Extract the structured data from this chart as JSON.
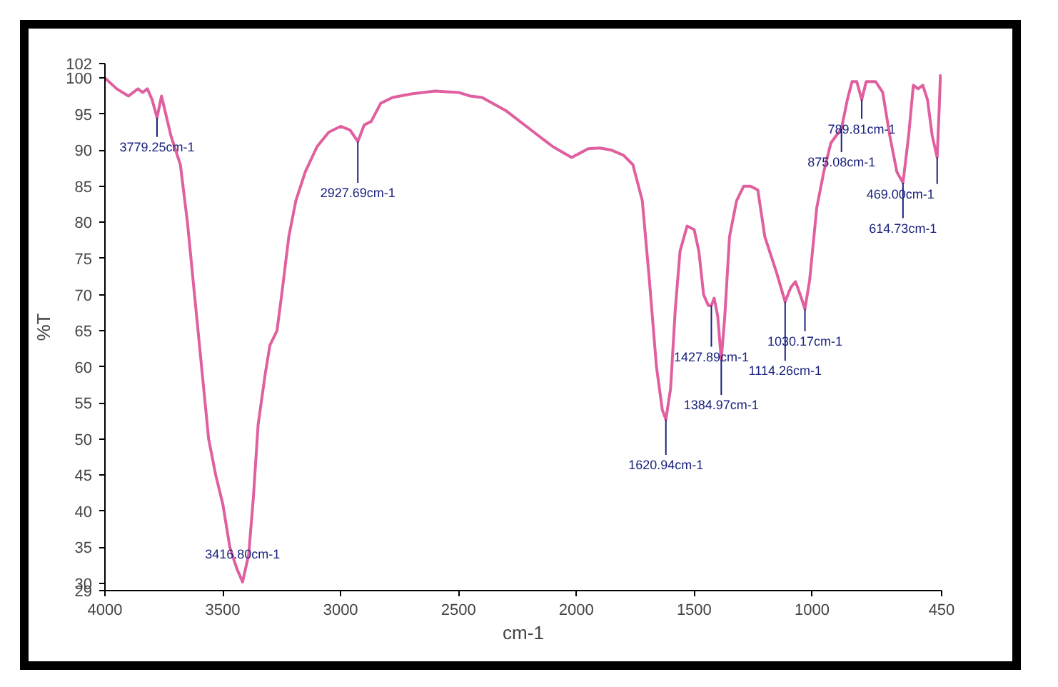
{
  "chart_data": {
    "type": "line",
    "xlabel": "cm-1",
    "ylabel": "%T",
    "xlim": [
      4000,
      450
    ],
    "ylim": [
      29,
      102
    ],
    "xticks": [
      4000,
      3500,
      3000,
      2500,
      2000,
      1500,
      1000,
      450
    ],
    "yticks": [
      29,
      30,
      35,
      40,
      45,
      50,
      55,
      60,
      65,
      70,
      75,
      80,
      85,
      90,
      95,
      100,
      102
    ],
    "grid": false,
    "line_style": "solid",
    "marker": "none",
    "series": [
      {
        "color": "#e0609f",
        "x": [
          4000,
          3950,
          3900,
          3860,
          3840,
          3820,
          3800,
          3779,
          3760,
          3720,
          3680,
          3650,
          3620,
          3590,
          3560,
          3530,
          3500,
          3470,
          3440,
          3416,
          3390,
          3370,
          3350,
          3320,
          3300,
          3270,
          3250,
          3220,
          3190,
          3150,
          3100,
          3050,
          3000,
          2960,
          2927,
          2900,
          2870,
          2830,
          2780,
          2700,
          2600,
          2500,
          2450,
          2400,
          2300,
          2200,
          2100,
          2020,
          1990,
          1950,
          1900,
          1850,
          1800,
          1760,
          1720,
          1690,
          1660,
          1635,
          1620,
          1600,
          1580,
          1560,
          1530,
          1500,
          1480,
          1460,
          1440,
          1427,
          1415,
          1400,
          1385,
          1370,
          1350,
          1320,
          1290,
          1260,
          1230,
          1200,
          1150,
          1114,
          1090,
          1070,
          1050,
          1030,
          1010,
          980,
          950,
          920,
          875,
          850,
          830,
          810,
          789,
          770,
          730,
          700,
          670,
          640,
          614,
          590,
          570,
          550,
          530,
          510,
          490,
          469,
          460,
          455
        ],
        "values": [
          100,
          98.5,
          97.5,
          98.5,
          98,
          98.5,
          97,
          94.5,
          97.5,
          92,
          88,
          80,
          70,
          60,
          50,
          45,
          41,
          35,
          32,
          30.2,
          34,
          42,
          52,
          59,
          63,
          65,
          70,
          78,
          83,
          87,
          90.5,
          92.5,
          93.3,
          92.8,
          91.2,
          93.5,
          94,
          96.5,
          97.3,
          97.8,
          98.2,
          98,
          97.5,
          97.3,
          95.5,
          93,
          90.5,
          89,
          89.5,
          90.2,
          90.3,
          90,
          89.3,
          88,
          83,
          72,
          60,
          54,
          52.7,
          57,
          68,
          76,
          79.5,
          79,
          76,
          70,
          68.5,
          68.5,
          69.5,
          67,
          61,
          67,
          78,
          83,
          85,
          85,
          84.5,
          78,
          73,
          69,
          71,
          71.8,
          70,
          68,
          72,
          82,
          87,
          91,
          93,
          97,
          99.5,
          99.5,
          97,
          99.5,
          99.5,
          98,
          92,
          87,
          85.5,
          92,
          99,
          98.5,
          99,
          97,
          92,
          89,
          96,
          100.5
        ]
      }
    ],
    "annotations": [
      {
        "text": "3779.25cm-1",
        "x": 3779,
        "y": 94.5
      },
      {
        "text": "2927.69cm-1",
        "x": 2927,
        "y": 91.2
      },
      {
        "text": "3416.80cm-1",
        "x": 3416,
        "y": 30.2
      },
      {
        "text": "1620.94cm-1",
        "x": 1620,
        "y": 52.7
      },
      {
        "text": "1427.89cm-1",
        "x": 1427,
        "y": 68.5
      },
      {
        "text": "1384.97cm-1",
        "x": 1385,
        "y": 61
      },
      {
        "text": "1114.26cm-1",
        "x": 1114,
        "y": 69
      },
      {
        "text": "1030.17cm-1",
        "x": 1030,
        "y": 68
      },
      {
        "text": "875.08cm-1",
        "x": 875,
        "y": 93
      },
      {
        "text": "789.81cm-1",
        "x": 789,
        "y": 97
      },
      {
        "text": "614.73cm-1",
        "x": 614,
        "y": 85.5
      },
      {
        "text": "469.00cm-1",
        "x": 469,
        "y": 89
      }
    ]
  }
}
